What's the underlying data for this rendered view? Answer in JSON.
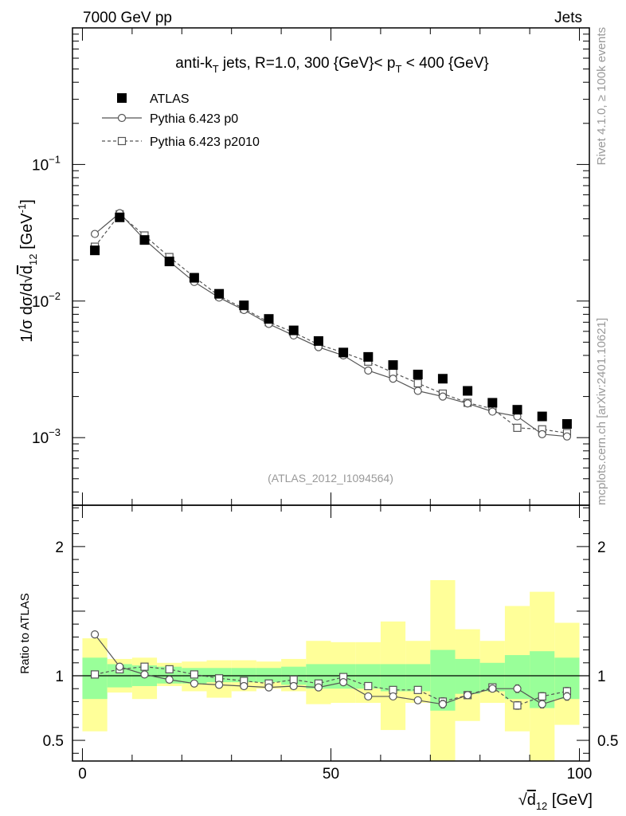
{
  "header": {
    "left": "7000 GeV pp",
    "right": "Jets"
  },
  "side": {
    "rivet": "Rivet 4.1.0, ≥ 100k events",
    "mcplots": "mcplots.cern.ch [arXiv:2401.10621]"
  },
  "colors": {
    "atlas": "#000000",
    "p0": "#555555",
    "p2010": "#555555",
    "band_inner": "#99ff99",
    "band_outer": "#ffff99",
    "watermark": "#999999"
  },
  "chart_data": [
    {
      "type": "scatter",
      "title": "anti-k_T jets, R=1.0, 300 {GeV}< p_T < 400 {GeV}",
      "title_parts": {
        "a": "anti-k",
        "a_sub": "T",
        "b": " jets, R=1.0, 300 {GeV}< p",
        "b_sub": "T",
        "c": " < 400 {GeV}"
      },
      "ylabel": "1/σ dσ/d√d12 [GeV⁻¹]",
      "ylabel_parts": {
        "a": "1/σ dσ/d",
        "sub": "12",
        "unit": " [GeV",
        "sup": "-1",
        "close": "]"
      },
      "yscale": "log",
      "ylim": [
        0.00032,
        1.0
      ],
      "xlim": [
        -2,
        102
      ],
      "yticks": [
        {
          "base": "10",
          "exp": "−1",
          "value": 0.1
        },
        {
          "base": "10",
          "exp": "−2",
          "value": 0.01
        },
        {
          "base": "10",
          "exp": "−3",
          "value": 0.001
        }
      ],
      "watermark": "(ATLAS_2012_I1094564)",
      "legend": [
        "ATLAS",
        "Pythia 6.423 p0",
        "Pythia 6.423 p2010"
      ],
      "x": [
        2.5,
        7.5,
        12.5,
        17.5,
        22.5,
        27.5,
        32.5,
        37.5,
        42.5,
        47.5,
        52.5,
        57.5,
        62.5,
        67.5,
        72.5,
        77.5,
        82.5,
        87.5,
        92.5,
        97.5
      ],
      "series": [
        {
          "name": "ATLAS",
          "marker": "filled-square",
          "values": [
            0.0235,
            0.041,
            0.028,
            0.0195,
            0.0148,
            0.0113,
            0.0093,
            0.0074,
            0.0061,
            0.0051,
            0.0042,
            0.0039,
            0.0034,
            0.0029,
            0.0027,
            0.0022,
            0.0018,
            0.0016,
            0.00143,
            0.00126
          ]
        },
        {
          "name": "Pythia 6.423 p0",
          "marker": "open-circle",
          "line": "solid",
          "values": [
            0.031,
            0.044,
            0.0282,
            0.0195,
            0.0138,
            0.0106,
            0.0086,
            0.0068,
            0.0056,
            0.0046,
            0.004,
            0.0031,
            0.0027,
            0.0022,
            0.002,
            0.00178,
            0.00155,
            0.00143,
            0.00106,
            0.00102
          ]
        },
        {
          "name": "Pythia 6.423 p2010",
          "marker": "open-square",
          "line": "dashed",
          "values": [
            0.025,
            0.0432,
            0.0302,
            0.021,
            0.015,
            0.0109,
            0.0088,
            0.007,
            0.0059,
            0.0048,
            0.0042,
            0.0036,
            0.003,
            0.0025,
            0.0021,
            0.0018,
            0.00163,
            0.00118,
            0.00115,
            0.00108
          ]
        }
      ]
    },
    {
      "type": "line",
      "ylabel": "Ratio to ATLAS",
      "xlabel_parts": {
        "a": "d",
        "sub": "12",
        "unit": " [GeV]"
      },
      "xlabel": "√d12 [GeV]",
      "ylim": [
        0.34,
        2.32
      ],
      "yticks": [
        0.5,
        1,
        2
      ],
      "ytick_labels": [
        "0.5",
        "1",
        "2"
      ],
      "xticks": [
        0,
        50,
        100
      ],
      "xtick_labels": [
        "0",
        "50",
        "100"
      ],
      "x": [
        2.5,
        7.5,
        12.5,
        17.5,
        22.5,
        27.5,
        32.5,
        37.5,
        42.5,
        47.5,
        52.5,
        57.5,
        62.5,
        67.5,
        72.5,
        77.5,
        82.5,
        87.5,
        92.5,
        97.5
      ],
      "bin_width": 5,
      "bands": {
        "inner_lo": [
          0.82,
          0.91,
          0.92,
          0.94,
          0.94,
          0.95,
          0.95,
          0.95,
          0.93,
          0.9,
          0.9,
          0.9,
          0.88,
          0.88,
          0.73,
          0.86,
          0.88,
          0.82,
          0.75,
          0.82
        ],
        "inner_hi": [
          1.14,
          1.09,
          1.08,
          1.07,
          1.06,
          1.06,
          1.06,
          1.06,
          1.07,
          1.09,
          1.09,
          1.09,
          1.09,
          1.09,
          1.2,
          1.13,
          1.1,
          1.16,
          1.19,
          1.14
        ],
        "outer_lo": [
          0.57,
          0.87,
          0.82,
          0.92,
          0.88,
          0.83,
          0.88,
          0.9,
          0.88,
          0.78,
          0.79,
          0.79,
          0.58,
          0.79,
          0.3,
          0.65,
          0.79,
          0.57,
          0.3,
          0.62
        ],
        "outer_hi": [
          1.29,
          1.13,
          1.14,
          1.1,
          1.11,
          1.12,
          1.12,
          1.11,
          1.13,
          1.27,
          1.26,
          1.26,
          1.42,
          1.27,
          1.74,
          1.36,
          1.27,
          1.54,
          1.65,
          1.41
        ]
      },
      "series": [
        {
          "name": "Pythia 6.423 p0",
          "marker": "open-circle",
          "line": "solid",
          "values": [
            1.32,
            1.07,
            1.01,
            0.97,
            0.94,
            0.93,
            0.92,
            0.91,
            0.92,
            0.91,
            0.95,
            0.84,
            0.84,
            0.81,
            0.78,
            0.85,
            0.9,
            0.9,
            0.78,
            0.84
          ],
          "errors": [
            0,
            0,
            0,
            0,
            0,
            0,
            0,
            0,
            0,
            0,
            0,
            0.02,
            0.02,
            0.02,
            0.03,
            0.02,
            0.02,
            0.03,
            0.03,
            0.03
          ]
        },
        {
          "name": "Pythia 6.423 p2010",
          "marker": "open-square",
          "line": "dashed",
          "values": [
            1.01,
            1.05,
            1.07,
            1.05,
            1.01,
            0.98,
            0.96,
            0.94,
            0.97,
            0.94,
            0.99,
            0.92,
            0.89,
            0.89,
            0.8,
            0.85,
            0.91,
            0.77,
            0.84,
            0.88
          ],
          "errors": [
            0,
            0,
            0,
            0,
            0,
            0,
            0,
            0,
            0,
            0,
            0,
            0.02,
            0.02,
            0.02,
            0.03,
            0.02,
            0.02,
            0.03,
            0.03,
            0.03
          ]
        }
      ]
    }
  ]
}
